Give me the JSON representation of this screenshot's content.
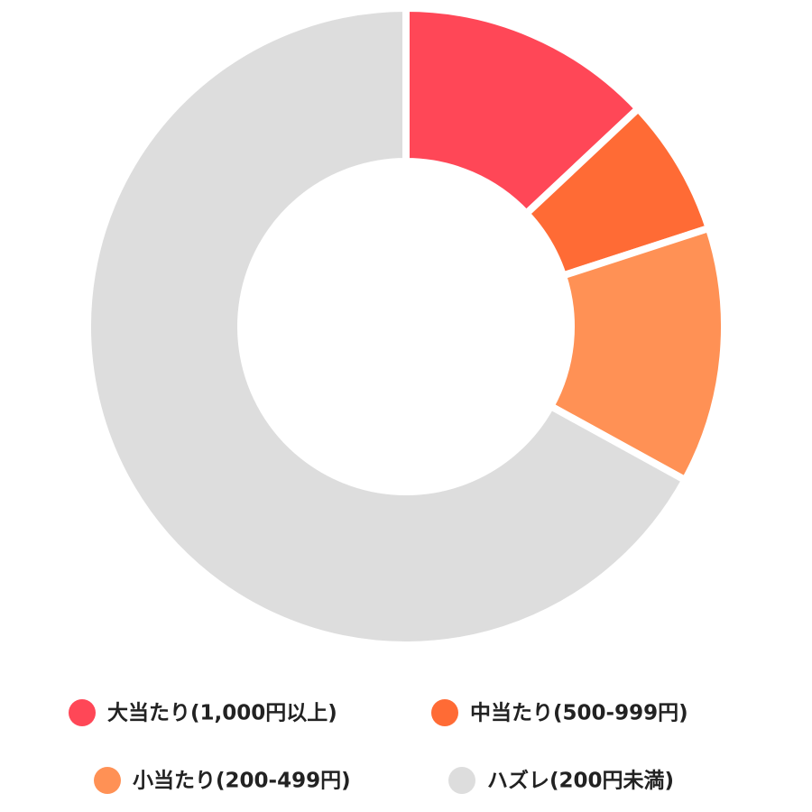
{
  "chart_data": {
    "type": "pie",
    "donut": true,
    "categories": [
      "大当たり(1,000円以上)",
      "中当たり(500-999円)",
      "小当たり(200-499円)",
      "ハズレ(200円未満)"
    ],
    "values": [
      13,
      7,
      13,
      67
    ],
    "colors": [
      "#ff4757",
      "#ff6b35",
      "#ff9155",
      "#dddddd"
    ]
  }
}
